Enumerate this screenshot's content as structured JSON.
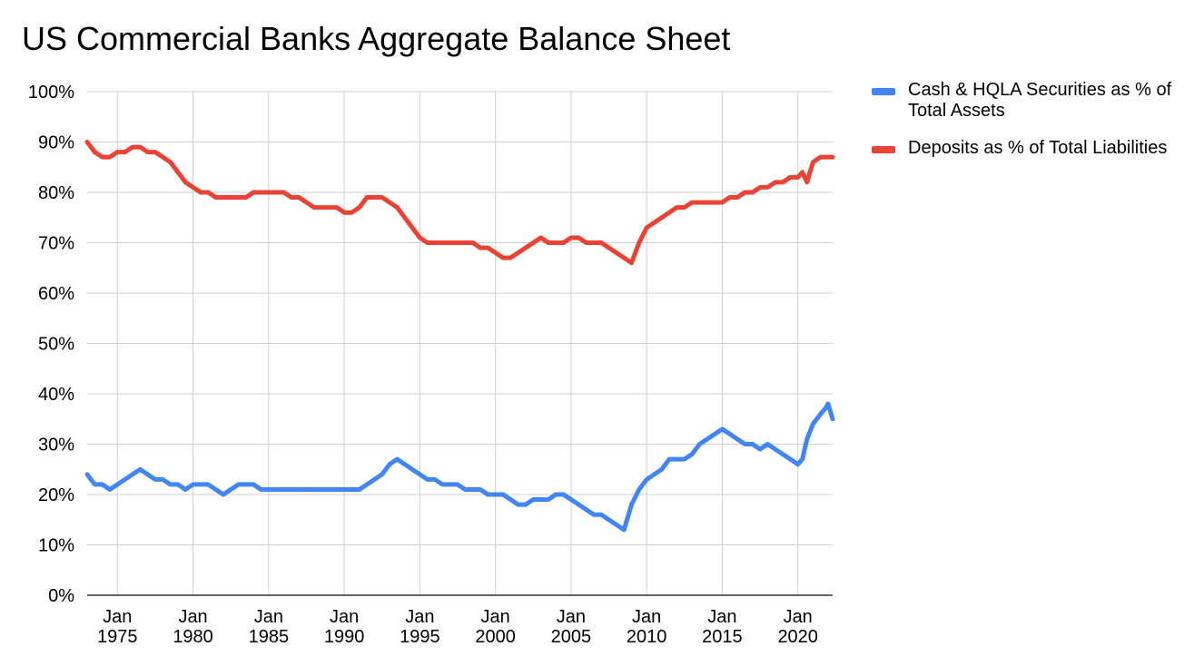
{
  "chart_data": {
    "type": "line",
    "title": "US Commercial Banks Aggregate Balance Sheet",
    "xlabel": "",
    "ylabel": "",
    "xlim": [
      1973.0,
      2022.3
    ],
    "ylim": [
      0,
      100
    ],
    "y_ticks": [
      0,
      10,
      20,
      30,
      40,
      50,
      60,
      70,
      80,
      90,
      100
    ],
    "y_tick_labels": [
      "0%",
      "10%",
      "20%",
      "30%",
      "40%",
      "50%",
      "60%",
      "70%",
      "80%",
      "90%",
      "100%"
    ],
    "x_ticks": [
      1975,
      1980,
      1985,
      1990,
      1995,
      2000,
      2005,
      2010,
      2015,
      2020
    ],
    "x_tick_labels": [
      [
        "Jan",
        "1975"
      ],
      [
        "Jan",
        "1980"
      ],
      [
        "Jan",
        "1985"
      ],
      [
        "Jan",
        "1990"
      ],
      [
        "Jan",
        "1995"
      ],
      [
        "Jan",
        "2000"
      ],
      [
        "Jan",
        "2005"
      ],
      [
        "Jan",
        "2010"
      ],
      [
        "Jan",
        "2015"
      ],
      [
        "Jan",
        "2020"
      ]
    ],
    "grid": true,
    "legend_position": "right",
    "series": [
      {
        "name": "Cash & HQLA Securities as % of Total Assets",
        "color": "#4285f4",
        "x": [
          1973.0,
          1973.5,
          1974.0,
          1974.5,
          1975.0,
          1975.5,
          1976.0,
          1976.5,
          1977.0,
          1977.5,
          1978.0,
          1978.5,
          1979.0,
          1979.5,
          1980.0,
          1980.5,
          1981.0,
          1981.5,
          1982.0,
          1982.5,
          1983.0,
          1983.5,
          1984.0,
          1984.5,
          1985.0,
          1985.5,
          1986.0,
          1986.5,
          1987.0,
          1987.5,
          1988.0,
          1988.5,
          1989.0,
          1989.5,
          1990.0,
          1990.5,
          1991.0,
          1991.5,
          1992.0,
          1992.5,
          1993.0,
          1993.5,
          1994.0,
          1994.5,
          1995.0,
          1995.5,
          1996.0,
          1996.5,
          1997.0,
          1997.5,
          1998.0,
          1998.5,
          1999.0,
          1999.5,
          2000.0,
          2000.5,
          2001.0,
          2001.5,
          2002.0,
          2002.5,
          2003.0,
          2003.5,
          2004.0,
          2004.5,
          2005.0,
          2005.5,
          2006.0,
          2006.5,
          2007.0,
          2007.5,
          2008.0,
          2008.5,
          2009.0,
          2009.5,
          2010.0,
          2010.5,
          2011.0,
          2011.5,
          2012.0,
          2012.5,
          2013.0,
          2013.5,
          2014.0,
          2014.5,
          2015.0,
          2015.5,
          2016.0,
          2016.5,
          2017.0,
          2017.5,
          2018.0,
          2018.5,
          2019.0,
          2019.5,
          2020.0,
          2020.3,
          2020.6,
          2021.0,
          2021.5,
          2021.8,
          2022.0,
          2022.3
        ],
        "y": [
          24,
          22,
          22,
          21,
          22,
          23,
          24,
          25,
          24,
          23,
          23,
          22,
          22,
          21,
          22,
          22,
          22,
          21,
          20,
          21,
          22,
          22,
          22,
          21,
          21,
          21,
          21,
          21,
          21,
          21,
          21,
          21,
          21,
          21,
          21,
          21,
          21,
          22,
          23,
          24,
          26,
          27,
          26,
          25,
          24,
          23,
          23,
          22,
          22,
          22,
          21,
          21,
          21,
          20,
          20,
          20,
          19,
          18,
          18,
          19,
          19,
          19,
          20,
          20,
          19,
          18,
          17,
          16,
          16,
          15,
          14,
          13,
          18,
          21,
          23,
          24,
          25,
          27,
          27,
          27,
          28,
          30,
          31,
          32,
          33,
          32,
          31,
          30,
          30,
          29,
          30,
          29,
          28,
          27,
          26,
          27,
          31,
          34,
          36,
          37,
          38,
          35
        ]
      },
      {
        "name": "Deposits as % of Total Liabilities",
        "color": "#ea4335",
        "x": [
          1973.0,
          1973.5,
          1974.0,
          1974.5,
          1975.0,
          1975.5,
          1976.0,
          1976.5,
          1977.0,
          1977.5,
          1978.0,
          1978.5,
          1979.0,
          1979.5,
          1980.0,
          1980.5,
          1981.0,
          1981.5,
          1982.0,
          1982.5,
          1983.0,
          1983.5,
          1984.0,
          1984.5,
          1985.0,
          1985.5,
          1986.0,
          1986.5,
          1987.0,
          1987.5,
          1988.0,
          1988.5,
          1989.0,
          1989.5,
          1990.0,
          1990.5,
          1991.0,
          1991.5,
          1992.0,
          1992.5,
          1993.0,
          1993.5,
          1994.0,
          1994.5,
          1995.0,
          1995.5,
          1996.0,
          1996.5,
          1997.0,
          1997.5,
          1998.0,
          1998.5,
          1999.0,
          1999.5,
          2000.0,
          2000.5,
          2001.0,
          2001.5,
          2002.0,
          2002.5,
          2003.0,
          2003.5,
          2004.0,
          2004.5,
          2005.0,
          2005.5,
          2006.0,
          2006.5,
          2007.0,
          2007.5,
          2008.0,
          2008.5,
          2009.0,
          2009.5,
          2010.0,
          2010.5,
          2011.0,
          2011.5,
          2012.0,
          2012.5,
          2013.0,
          2013.5,
          2014.0,
          2014.5,
          2015.0,
          2015.5,
          2016.0,
          2016.5,
          2017.0,
          2017.5,
          2018.0,
          2018.5,
          2019.0,
          2019.5,
          2020.0,
          2020.3,
          2020.6,
          2021.0,
          2021.5,
          2021.8,
          2022.0,
          2022.3
        ],
        "y": [
          90,
          88,
          87,
          87,
          88,
          88,
          89,
          89,
          88,
          88,
          87,
          86,
          84,
          82,
          81,
          80,
          80,
          79,
          79,
          79,
          79,
          79,
          80,
          80,
          80,
          80,
          80,
          79,
          79,
          78,
          77,
          77,
          77,
          77,
          76,
          76,
          77,
          79,
          79,
          79,
          78,
          77,
          75,
          73,
          71,
          70,
          70,
          70,
          70,
          70,
          70,
          70,
          69,
          69,
          68,
          67,
          67,
          68,
          69,
          70,
          71,
          70,
          70,
          70,
          71,
          71,
          70,
          70,
          70,
          69,
          68,
          67,
          66,
          70,
          73,
          74,
          75,
          76,
          77,
          77,
          78,
          78,
          78,
          78,
          78,
          79,
          79,
          80,
          80,
          81,
          81,
          82,
          82,
          83,
          83,
          84,
          82,
          86,
          87,
          87,
          87,
          87
        ]
      }
    ]
  }
}
